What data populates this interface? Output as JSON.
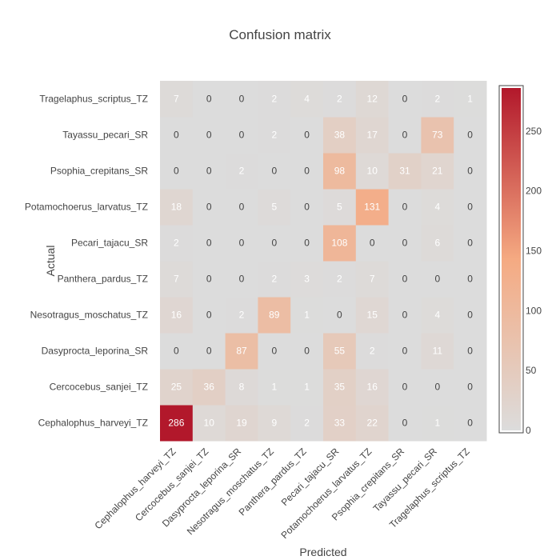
{
  "chart_data": {
    "type": "heatmap",
    "title": "Confusion matrix",
    "xlabel": "Predicted",
    "ylabel": "Actual",
    "x_categories": [
      "Cephalophus_harveyi_TZ",
      "Cercocebus_sanjei_TZ",
      "Dasyprocta_leporina_SR",
      "Nesotragus_moschatus_TZ",
      "Panthera_pardus_TZ",
      "Pecari_tajacu_SR",
      "Potamochoerus_larvatus_TZ",
      "Psophia_crepitans_SR",
      "Tayassu_pecari_SR",
      "Tragelaphus_scriptus_TZ"
    ],
    "y_categories": [
      "Cephalophus_harveyi_TZ",
      "Cercocebus_sanjei_TZ",
      "Dasyprocta_leporina_SR",
      "Nesotragus_moschatus_TZ",
      "Panthera_pardus_TZ",
      "Pecari_tajacu_SR",
      "Potamochoerus_larvatus_TZ",
      "Psophia_crepitans_SR",
      "Tayassu_pecari_SR",
      "Tragelaphus_scriptus_TZ"
    ],
    "z": [
      [
        286,
        10,
        19,
        9,
        2,
        33,
        22,
        0,
        1,
        0
      ],
      [
        25,
        36,
        8,
        1,
        1,
        35,
        16,
        0,
        0,
        0
      ],
      [
        0,
        0,
        87,
        0,
        0,
        55,
        2,
        0,
        11,
        0
      ],
      [
        16,
        0,
        2,
        89,
        1,
        0,
        15,
        0,
        4,
        0
      ],
      [
        7,
        0,
        0,
        2,
        3,
        2,
        7,
        0,
        0,
        0
      ],
      [
        2,
        0,
        0,
        0,
        0,
        108,
        0,
        0,
        6,
        0
      ],
      [
        18,
        0,
        0,
        5,
        0,
        5,
        131,
        0,
        4,
        0
      ],
      [
        0,
        0,
        2,
        0,
        0,
        98,
        10,
        31,
        21,
        0
      ],
      [
        0,
        0,
        0,
        2,
        0,
        38,
        17,
        0,
        73,
        0
      ],
      [
        7,
        0,
        0,
        2,
        4,
        2,
        12,
        0,
        2,
        1
      ]
    ],
    "colorscale": [
      "#dcdcdc",
      "#f5aa82",
      "#b2182b"
    ],
    "colorbar": {
      "range": [
        0,
        286
      ],
      "tick_values": [
        0,
        50,
        100,
        150,
        200,
        250
      ],
      "tick_labels": [
        "0",
        "50",
        "100",
        "150",
        "200",
        "250"
      ]
    }
  }
}
